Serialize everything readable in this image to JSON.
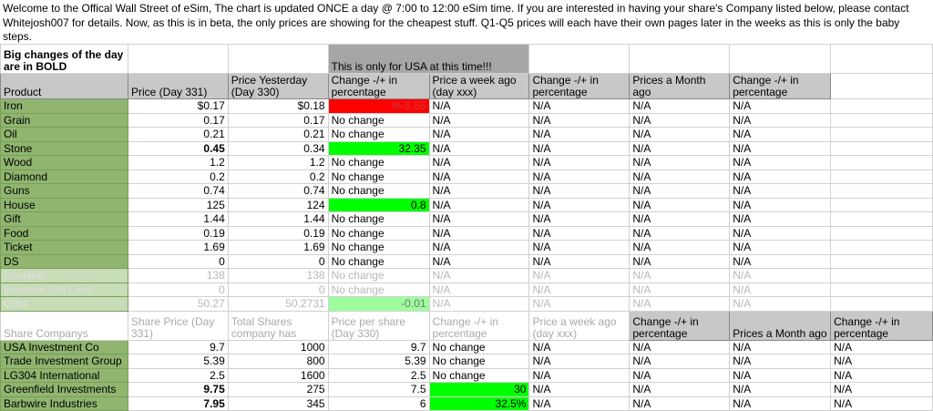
{
  "intro": "Welcome to the Offical Wall Street of eSim, The chart is updated ONCE a day @ 7:00 to 12:00 eSim time. If you are interested in having your share's Company listed below, please contact Whitejosh007 for details. Now, as this is in beta, the only prices are showing for the cheapest stuff. Q1-Q5 prices will each have their own pages later in the weeks as this is only the baby steps.",
  "note_bold": "Big changes of the day are in BOLD",
  "banner": "This is only for USA at this time!!!",
  "product_headers": [
    "Product",
    "Price (Day 331)",
    "Price Yesterday (Day 330)",
    "Change -/+ in percentage",
    "Price a week ago (day xxx)",
    "Change -/+ in percentage",
    "Prices a Month ago",
    "Change -/+ in percentage",
    ""
  ],
  "products": [
    {
      "name": "Iron",
      "price": "$0.17",
      "yesterday": "$0.18",
      "change": "%-5.55",
      "highlight": "red",
      "week": "N/A",
      "change_week": "N/A",
      "month": "N/A",
      "change_month": "N/A"
    },
    {
      "name": "Grain",
      "price": "0.17",
      "yesterday": "0.17",
      "change": "No change",
      "week": "N/A",
      "change_week": "N/A",
      "month": "N/A",
      "change_month": "N/A"
    },
    {
      "name": "Oil",
      "price": "0.21",
      "yesterday": "0.21",
      "change": "No change",
      "week": "N/A",
      "change_week": "N/A",
      "month": "N/A",
      "change_month": "N/A"
    },
    {
      "name": "Stone",
      "price": "0.45",
      "bold": true,
      "yesterday": "0.34",
      "change": "32.35",
      "highlight": "green",
      "week": "N/A",
      "change_week": "N/A",
      "month": "N/A",
      "change_month": "N/A"
    },
    {
      "name": "Wood",
      "price": "1.2",
      "yesterday": "1.2",
      "change": "No change",
      "week": "N/A",
      "change_week": "N/A",
      "month": "N/A",
      "change_month": "N/A"
    },
    {
      "name": "Diamond",
      "price": "0.2",
      "yesterday": "0.2",
      "change": "No change",
      "week": "N/A",
      "change_week": "N/A",
      "month": "N/A",
      "change_month": "N/A"
    },
    {
      "name": "Guns",
      "price": "0.74",
      "yesterday": "0.74",
      "change": "No change",
      "week": "N/A",
      "change_week": "N/A",
      "month": "N/A",
      "change_month": "N/A"
    },
    {
      "name": "House",
      "price": "125",
      "yesterday": "124",
      "change": "0.8",
      "highlight": "green",
      "week": "N/A",
      "change_week": "N/A",
      "month": "N/A",
      "change_month": "N/A"
    },
    {
      "name": "Gift",
      "price": "1.44",
      "yesterday": "1.44",
      "change": "No change",
      "week": "N/A",
      "change_week": "N/A",
      "month": "N/A",
      "change_month": "N/A"
    },
    {
      "name": "Food",
      "price": "0.19",
      "yesterday": "0.19",
      "change": "No change",
      "week": "N/A",
      "change_week": "N/A",
      "month": "N/A",
      "change_month": "N/A"
    },
    {
      "name": "Ticket",
      "price": "1.69",
      "yesterday": "1.69",
      "change": "No change",
      "week": "N/A",
      "change_week": "N/A",
      "month": "N/A",
      "change_month": "N/A"
    },
    {
      "name": "DS",
      "price": "0",
      "yesterday": "0",
      "change": "No change",
      "week": "N/A",
      "change_week": "N/A",
      "month": "N/A",
      "change_month": "N/A"
    },
    {
      "name": "Hospital",
      "faded": true,
      "price": "138",
      "yesterday": "138",
      "change": "No change",
      "week": "N/A",
      "change_week": "N/A",
      "month": "N/A",
      "change_month": "N/A"
    },
    {
      "name": "Increase Gift Limit",
      "faded": true,
      "price": "0",
      "yesterday": "0",
      "change": "No change",
      "week": "N/A",
      "change_week": "N/A",
      "month": "N/A",
      "change_month": "N/A"
    },
    {
      "name": "Gold",
      "faded": true,
      "price": "50.27",
      "yesterday": "50.2731",
      "change": "-0.01",
      "highlight": "lgreen",
      "week": "N/A",
      "change_week": "N/A",
      "month": "N/A",
      "change_month": "N/A"
    }
  ],
  "share_headers": [
    "Share Companys",
    "Share Price (Day 331)",
    "Total Shares company has",
    "Price per share (Day 330)",
    "Change -/+ in percentage",
    "Price a week ago (day xxx)",
    "Change -/+ in percentage",
    "Prices a Month ago",
    "Change -/+ in percentage"
  ],
  "shares": [
    {
      "name": "USA Investment Co",
      "price": "9.7",
      "total": "1000",
      "per_share": "9.7",
      "change": "No change",
      "week": "N/A",
      "change_week": "N/A",
      "month": "N/A",
      "change_month": "N/A"
    },
    {
      "name": "Trade Investment Group",
      "price": "5.39",
      "total": "800",
      "per_share": "5.39",
      "change": "No change",
      "week": "N/A",
      "change_week": "N/A",
      "month": "N/A",
      "change_month": "N/A"
    },
    {
      "name": "LG304 International",
      "price": "2.5",
      "total": "1600",
      "per_share": "2.5",
      "change": "No change",
      "week": "N/A",
      "change_week": "N/A",
      "month": "N/A",
      "change_month": "N/A"
    },
    {
      "name": "Greenfield Investments",
      "price": "9.75",
      "bold": true,
      "total": "275",
      "per_share": "7.5",
      "change": "30",
      "highlight": "green",
      "week": "N/A",
      "change_week": "N/A",
      "month": "N/A",
      "change_month": "N/A"
    },
    {
      "name": "Barbwire Industries",
      "price": "7.95",
      "bold": true,
      "total": "345",
      "per_share": "6",
      "change": "32.5%",
      "highlight": "green",
      "week": "N/A",
      "change_week": "N/A",
      "month": "N/A",
      "change_month": "N/A"
    }
  ],
  "colors": {
    "product_column": "#8fb56f",
    "header": "#c8c8c8",
    "banner": "#a6a6a6",
    "increase": "#00ff00",
    "decrease": "#ff0000"
  }
}
